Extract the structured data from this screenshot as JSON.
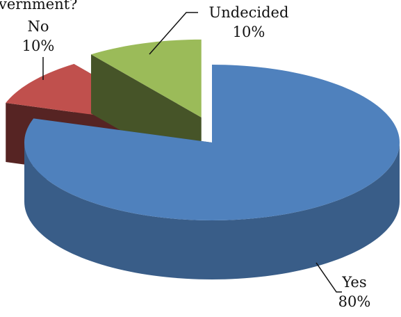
{
  "chart_data": {
    "type": "pie",
    "title": "vernment?",
    "categories": [
      "Yes",
      "No",
      "Undecided"
    ],
    "values": [
      80,
      10,
      10
    ],
    "value_labels": [
      "80%",
      "10%",
      "10%"
    ],
    "colors": [
      "#4f81bd",
      "#c0504d",
      "#9bbb59"
    ]
  }
}
